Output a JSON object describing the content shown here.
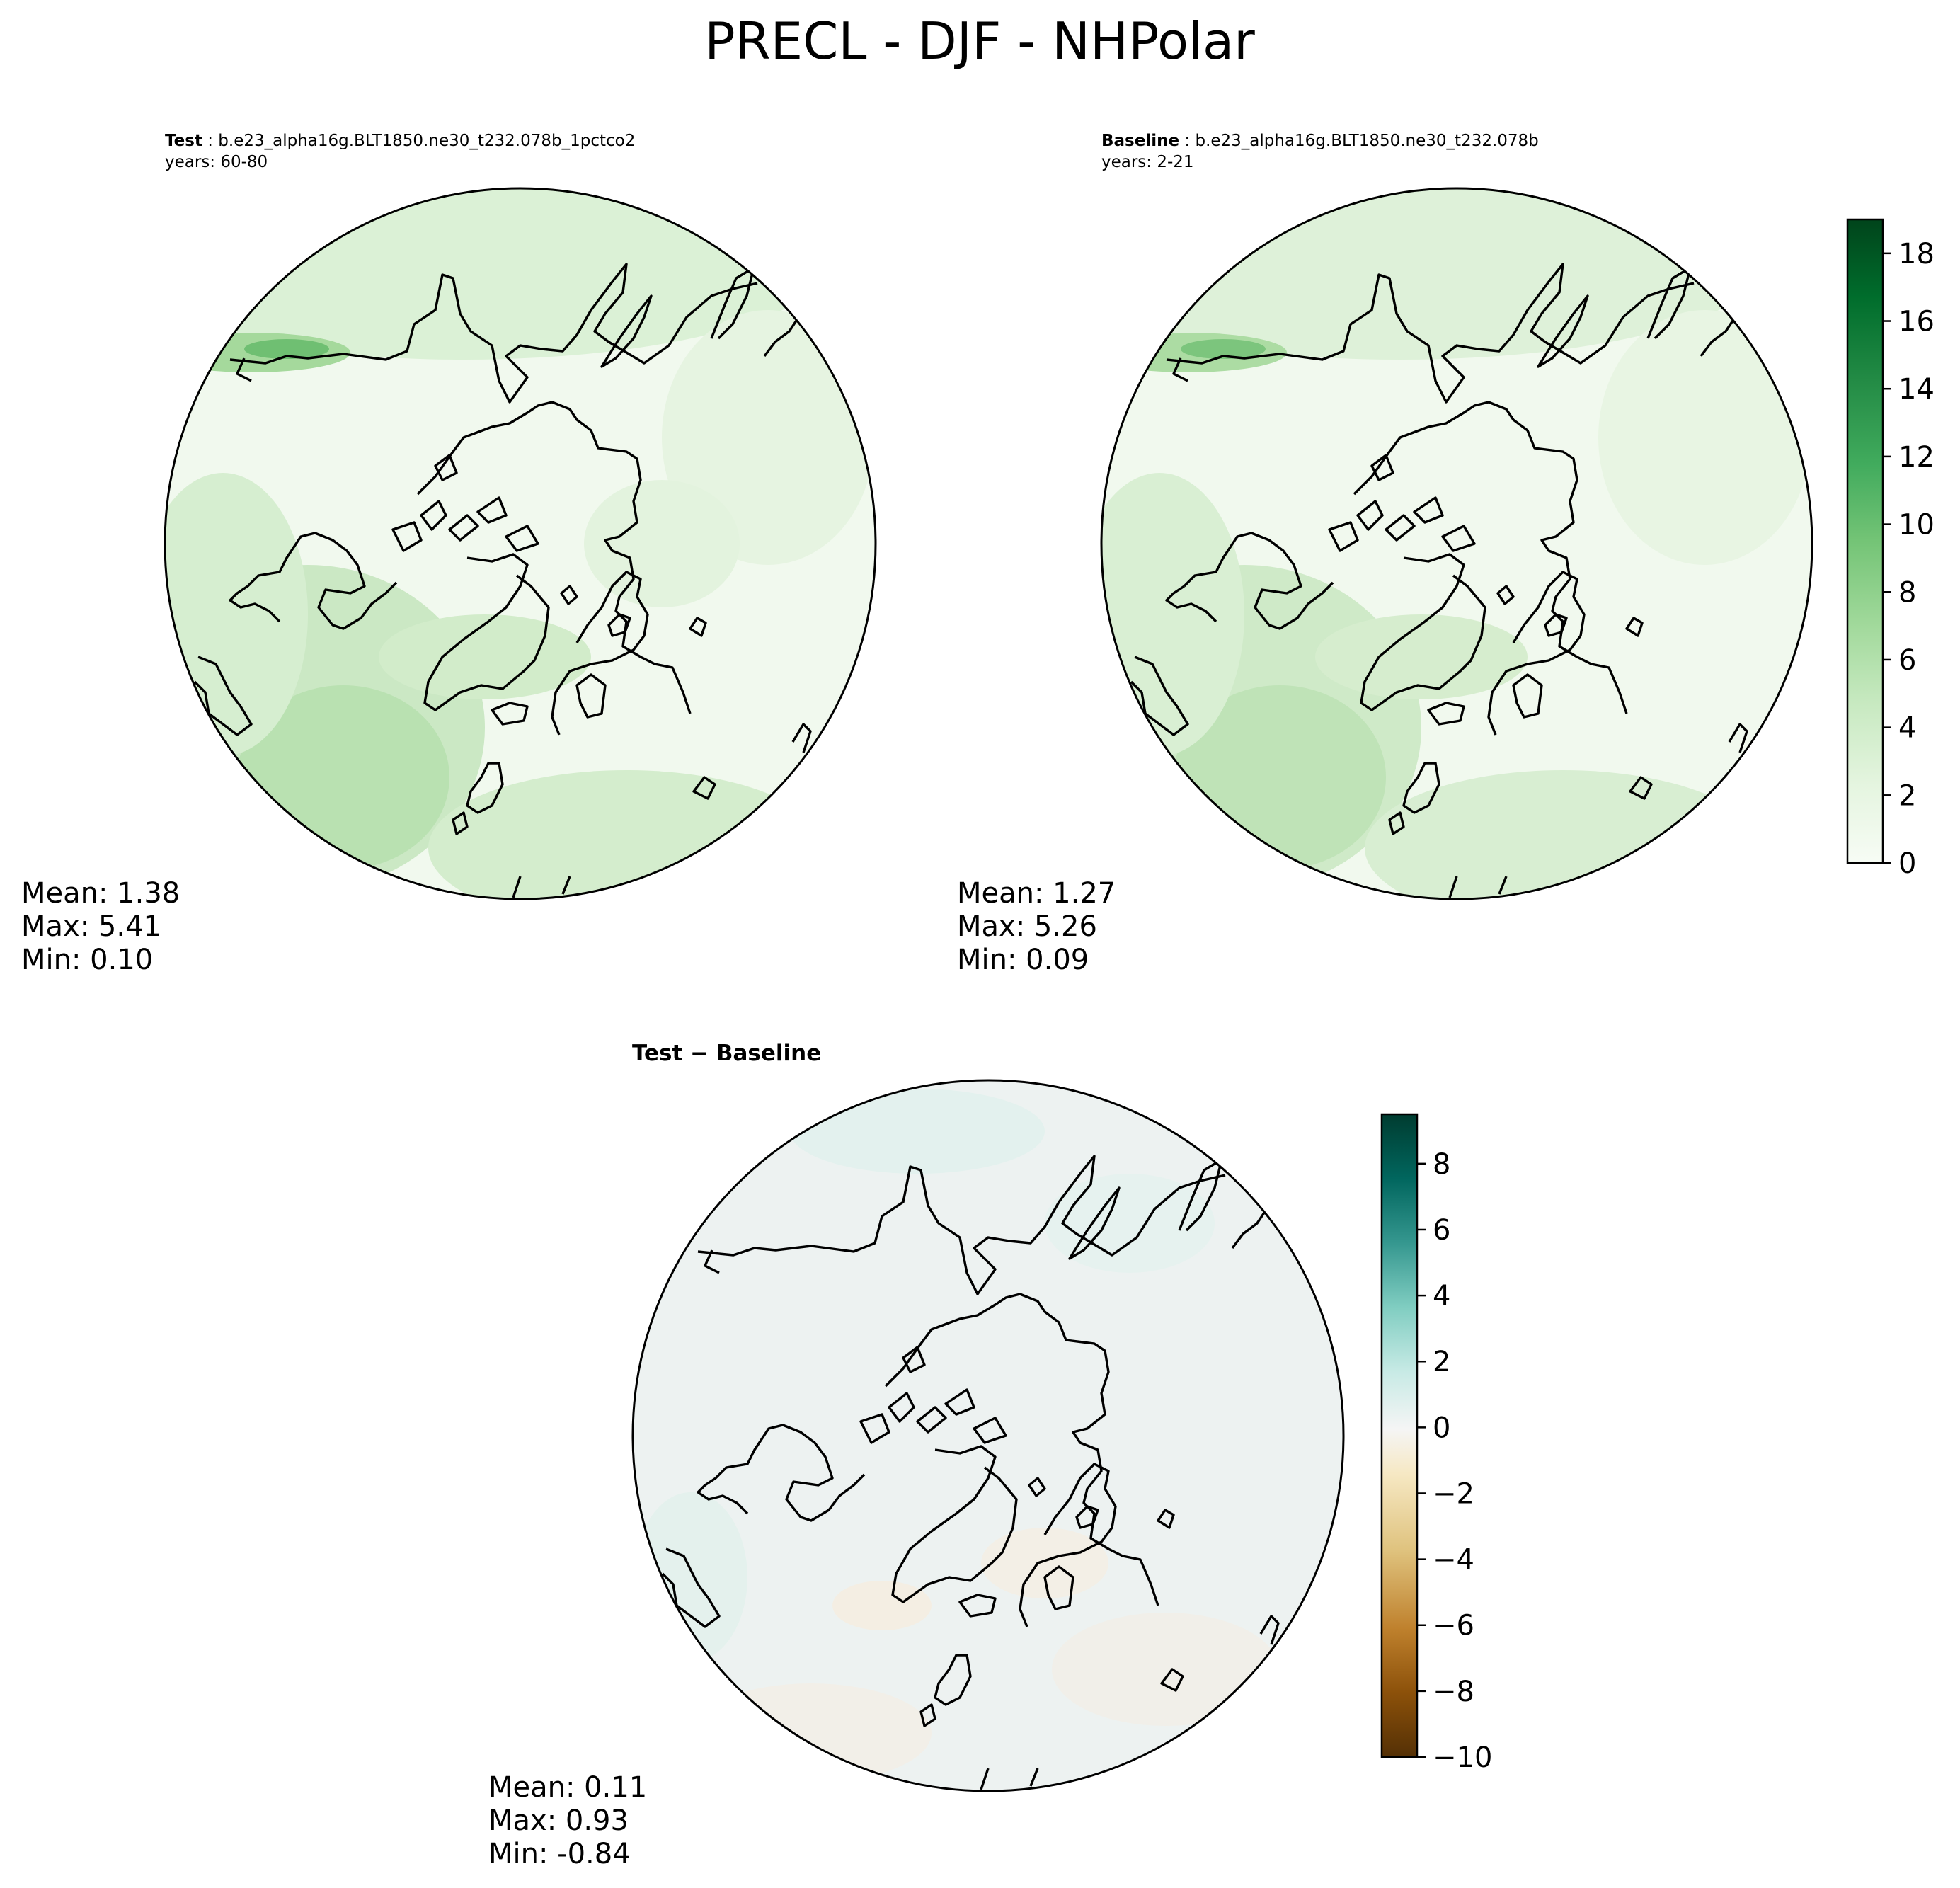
{
  "title": "PRECL - DJF - NHPolar",
  "panels": [
    {
      "label_bold": "Test",
      "case": " : b.e23_alpha16g.BLT1850.ne30_t232.078b_1pctco2",
      "years": "years: 60-80",
      "stats": {
        "mean": "Mean:  1.38",
        "max": "Max:  5.41",
        "min": "Min:  0.10"
      }
    },
    {
      "label_bold": "Baseline",
      "case": " : b.e23_alpha16g.BLT1850.ne30_t232.078b",
      "years": "years: 2-21",
      "stats": {
        "mean": "Mean:  1.27",
        "max": "Max:  5.26",
        "min": "Min:  0.09"
      }
    },
    {
      "diff_title": "Test − Baseline",
      "stats": {
        "mean": "Mean:  0.11",
        "max": "Max:  0.93",
        "min": "Min: -0.84"
      }
    }
  ],
  "colors": {
    "greens": [
      "#f7fcf5",
      "#e5f5e0",
      "#c7e9c0",
      "#a1d99b",
      "#74c476",
      "#41ab5d",
      "#238b45",
      "#006d2c",
      "#00441b"
    ],
    "diverging": [
      "#543005",
      "#8c510a",
      "#bf812d",
      "#dfc27d",
      "#f6e8c3",
      "#f5f5f5",
      "#c7eae5",
      "#80cdc1",
      "#35978f",
      "#01665e",
      "#003c30"
    ],
    "ocean_test": "#f1f9ee",
    "ocean_diff": "#edf2f1",
    "coast": "#000000"
  },
  "chart_data": [
    {
      "type": "heatmap",
      "projection": "north polar stereographic",
      "variable": "PRECL",
      "statistics": {
        "mean": 1.38,
        "max": 5.41,
        "min": 0.1
      },
      "colorbar": {
        "ticks": [
          "0",
          "2",
          "4",
          "6",
          "8",
          "10",
          "12",
          "14",
          "16",
          "18"
        ],
        "range": [
          0,
          19
        ],
        "cmap": "Greens"
      }
    },
    {
      "type": "heatmap",
      "projection": "north polar stereographic",
      "variable": "PRECL",
      "statistics": {
        "mean": 1.27,
        "max": 5.26,
        "min": 0.09
      },
      "colorbar": {
        "ticks": [
          "0",
          "2",
          "4",
          "6",
          "8",
          "10",
          "12",
          "14",
          "16",
          "18"
        ],
        "range": [
          0,
          19
        ],
        "cmap": "Greens"
      }
    },
    {
      "type": "heatmap",
      "projection": "north polar stereographic",
      "variable": "PRECL",
      "statistics": {
        "mean": 0.11,
        "max": 0.93,
        "min": -0.84
      },
      "colorbar": {
        "ticks": [
          "8",
          "6",
          "4",
          "2",
          "0",
          "−2",
          "−4",
          "−6",
          "−8",
          "−10"
        ],
        "range": [
          -10,
          9.5
        ],
        "cmap": "BrBG"
      }
    }
  ]
}
